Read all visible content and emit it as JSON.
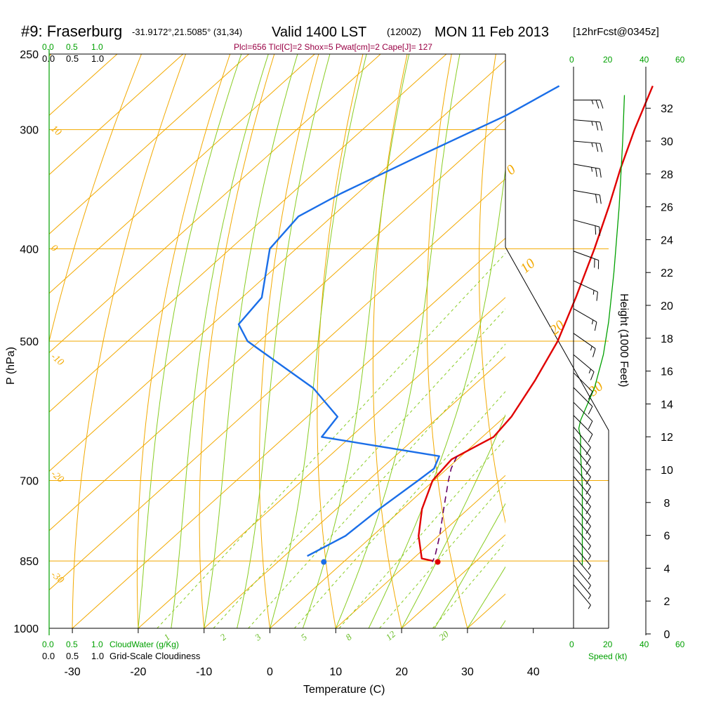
{
  "header": {
    "station": "#9: Fraserburg",
    "coords": "-31.9172°,21.5085° (31,34)",
    "valid": "Valid 1400 LST",
    "utc": "(1200Z)",
    "date": "MON 11 Feb 2013",
    "forecast": "[12hrFcst@0345z]",
    "indices": "Plcl=656 Tlcl[C]=2 Shox=5 Pwat[cm]=2 Cape[J]= 127"
  },
  "colors": {
    "isotherm": "#f2a900",
    "dry_adiabat": "#f2a900",
    "moist_adiabat": "#88cc22",
    "mixing_ratio": "#88cc22",
    "temperature": "#e00000",
    "dewpoint": "#1a6ee8",
    "parcel": "#660066",
    "wind_speed": "#00a000",
    "label_green": "#00a000",
    "indices_text": "#990044"
  },
  "cloud_scale": {
    "cloudwater_ticks": [
      "0.0",
      "0.5",
      "1.0"
    ],
    "cloudiness_ticks": [
      "0.0",
      "0.5",
      "1.0"
    ],
    "cloudwater_label": "CloudWater (g/Kg)",
    "cloudiness_label": "Grid-Scale Cloudiness"
  },
  "wind_panel": {
    "speed_ticks": [
      "0",
      "20",
      "40",
      "60"
    ],
    "speed_label": "Speed (kt)"
  },
  "chart_data": {
    "type": "line",
    "subtype": "skew-T log-P sounding",
    "xlabel": "Temperature (C)",
    "ylabel": "P (hPa)",
    "y2label": "Height (1000 Feet)",
    "x_ticks": [
      -30,
      -20,
      -10,
      0,
      10,
      20,
      30,
      40
    ],
    "pressure_ticks": [
      250,
      300,
      400,
      500,
      700,
      850,
      1000
    ],
    "height_ticks": [
      0,
      2,
      4,
      6,
      8,
      10,
      12,
      14,
      16,
      18,
      20,
      22,
      24,
      26,
      28,
      30,
      32
    ],
    "ylim": [
      1000,
      250
    ],
    "isotherm_labels": [
      {
        "text": "10",
        "p": 300
      },
      {
        "text": "0",
        "p": 400
      },
      {
        "text": "-10",
        "p": 520
      },
      {
        "text": "-20",
        "p": 690
      },
      {
        "text": "-30",
        "p": 880
      }
    ],
    "dry_adiabat_labels": [
      {
        "text": "0",
        "p": 330
      },
      {
        "text": "10",
        "p": 420
      },
      {
        "text": "20",
        "p": 500
      },
      {
        "text": "30",
        "p": 590
      }
    ],
    "mixing_ratio_labels": [
      "1",
      "2",
      "3",
      "5",
      "8",
      "12",
      "20"
    ],
    "series": [
      {
        "name": "Temperature",
        "pressure": [
          270,
          300,
          330,
          360,
          400,
          450,
          500,
          550,
          600,
          630,
          650,
          665,
          700,
          750,
          800,
          845,
          850
        ],
        "temperature": [
          -33.3,
          -28.7,
          -24.2,
          -19.8,
          -14.7,
          -9.3,
          -4.7,
          -1.5,
          1.0,
          1.7,
          0.2,
          -0.9,
          -0.2,
          3.0,
          7.0,
          11.3,
          13.4
        ]
      },
      {
        "name": "Dewpoint",
        "pressure": [
          270,
          290,
          320,
          350,
          370,
          400,
          450,
          480,
          500,
          560,
          600,
          630,
          660,
          680,
          700,
          750,
          800,
          840
        ],
        "dewpoint": [
          -47.5,
          -50.6,
          -57.0,
          -62.5,
          -65.1,
          -64.0,
          -57.0,
          -56.0,
          -51.8,
          -33.9,
          -25.4,
          -24.4,
          -3.3,
          -2.0,
          -2.4,
          -3.5,
          -4.1,
          -6.5
        ]
      },
      {
        "name": "Parcel",
        "pressure": [
          660,
          680,
          700,
          750,
          800,
          840,
          852
        ],
        "temperature": [
          -0.6,
          0.6,
          2.2,
          6.3,
          10.2,
          12.9,
          13.5
        ]
      }
    ],
    "surface_points": {
      "temperature": {
        "p": 852,
        "t": 14.3
      },
      "dewpoint": {
        "p": 852,
        "t": -3.0
      }
    },
    "winds": [
      {
        "h": 32.5,
        "dir": 270,
        "spd": 25
      },
      {
        "h": 31.3,
        "dir": 275,
        "spd": 25
      },
      {
        "h": 30.0,
        "dir": 275,
        "spd": 25
      },
      {
        "h": 28.6,
        "dir": 280,
        "spd": 25
      },
      {
        "h": 27.0,
        "dir": 280,
        "spd": 20
      },
      {
        "h": 25.2,
        "dir": 285,
        "spd": 20
      },
      {
        "h": 23.3,
        "dir": 290,
        "spd": 20
      },
      {
        "h": 21.5,
        "dir": 295,
        "spd": 15
      },
      {
        "h": 19.8,
        "dir": 300,
        "spd": 15
      },
      {
        "h": 18.3,
        "dir": 305,
        "spd": 15
      },
      {
        "h": 17.0,
        "dir": 310,
        "spd": 15
      },
      {
        "h": 15.9,
        "dir": 315,
        "spd": 10
      },
      {
        "h": 15.0,
        "dir": 315,
        "spd": 10
      },
      {
        "h": 14.1,
        "dir": 315,
        "spd": 10
      },
      {
        "h": 13.3,
        "dir": 315,
        "spd": 10
      },
      {
        "h": 12.6,
        "dir": 320,
        "spd": 10
      },
      {
        "h": 12.0,
        "dir": 320,
        "spd": 10
      },
      {
        "h": 11.4,
        "dir": 320,
        "spd": 10
      },
      {
        "h": 10.8,
        "dir": 320,
        "spd": 10
      },
      {
        "h": 10.2,
        "dir": 320,
        "spd": 10
      },
      {
        "h": 9.6,
        "dir": 320,
        "spd": 10
      },
      {
        "h": 9.0,
        "dir": 320,
        "spd": 10
      },
      {
        "h": 8.4,
        "dir": 320,
        "spd": 10
      },
      {
        "h": 7.8,
        "dir": 320,
        "spd": 10
      },
      {
        "h": 7.2,
        "dir": 320,
        "spd": 5
      },
      {
        "h": 6.6,
        "dir": 320,
        "spd": 5
      },
      {
        "h": 6.0,
        "dir": 320,
        "spd": 5
      },
      {
        "h": 5.4,
        "dir": 320,
        "spd": 5
      },
      {
        "h": 4.8,
        "dir": 320,
        "spd": 5
      },
      {
        "h": 4.2,
        "dir": 320,
        "spd": 5
      },
      {
        "h": 3.6,
        "dir": 320,
        "spd": 5
      },
      {
        "h": 3.0,
        "dir": 320,
        "spd": 5
      }
    ],
    "wind_speed_profile": {
      "h": [
        4.2,
        5,
        7,
        9,
        11,
        12,
        12.5,
        13.0,
        15,
        17,
        19,
        22,
        26,
        30,
        32.8
      ],
      "spd": [
        5,
        5,
        5,
        5,
        4,
        4,
        3,
        4,
        12,
        17,
        20,
        23,
        26,
        28,
        29
      ]
    }
  }
}
